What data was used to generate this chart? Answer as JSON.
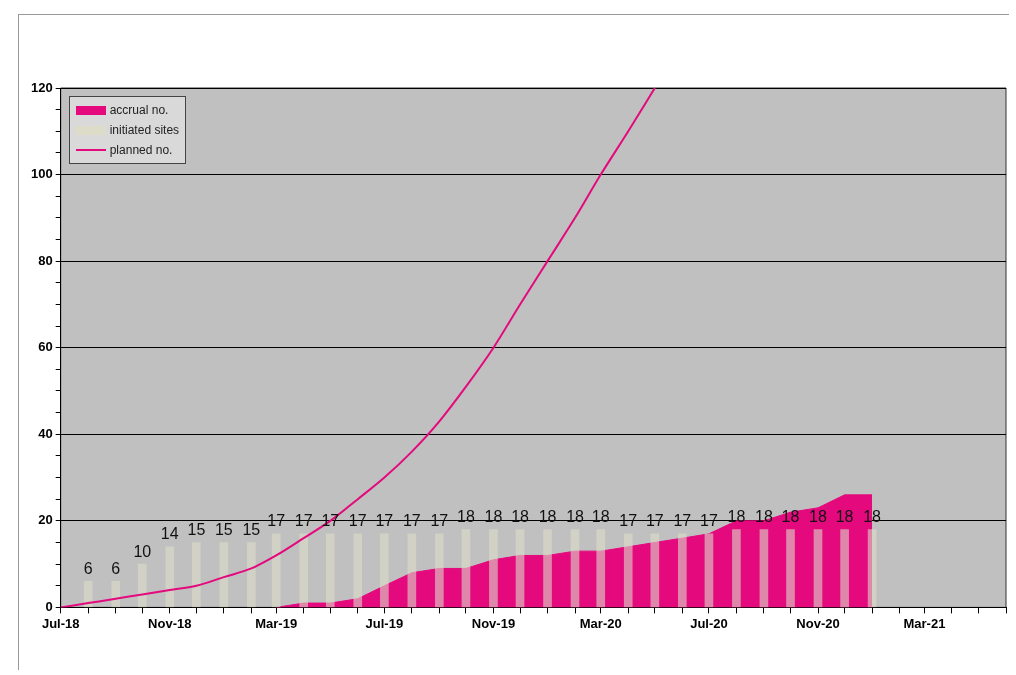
{
  "chart_data": {
    "type": "bar",
    "xlim": [
      "2018-07",
      "2021-06"
    ],
    "xticks": [
      {
        "value": "2018-07",
        "label": "Jul-18"
      },
      {
        "value": "2018-08",
        "label": null
      },
      {
        "value": "2018-09",
        "label": null
      },
      {
        "value": "2018-10",
        "label": null
      },
      {
        "value": "2018-11",
        "label": "Nov-18"
      },
      {
        "value": "2018-12",
        "label": null
      },
      {
        "value": "2019-01",
        "label": null
      },
      {
        "value": "2019-02",
        "label": null
      },
      {
        "value": "2019-03",
        "label": "Mar-19"
      },
      {
        "value": "2019-04",
        "label": null
      },
      {
        "value": "2019-05",
        "label": null
      },
      {
        "value": "2019-06",
        "label": null
      },
      {
        "value": "2019-07",
        "label": "Jul-19"
      },
      {
        "value": "2019-08",
        "label": null
      },
      {
        "value": "2019-09",
        "label": null
      },
      {
        "value": "2019-10",
        "label": null
      },
      {
        "value": "2019-11",
        "label": "Nov-19"
      },
      {
        "value": "2019-12",
        "label": null
      },
      {
        "value": "2020-01",
        "label": null
      },
      {
        "value": "2020-02",
        "label": null
      },
      {
        "value": "2020-03",
        "label": "Mar-20"
      },
      {
        "value": "2020-04",
        "label": null
      },
      {
        "value": "2020-05",
        "label": null
      },
      {
        "value": "2020-06",
        "label": null
      },
      {
        "value": "2020-07",
        "label": "Jul-20"
      },
      {
        "value": "2020-08",
        "label": null
      },
      {
        "value": "2020-09",
        "label": null
      },
      {
        "value": "2020-10",
        "label": null
      },
      {
        "value": "2020-11",
        "label": "Nov-20"
      },
      {
        "value": "2020-12",
        "label": null
      },
      {
        "value": "2021-01",
        "label": null
      },
      {
        "value": "2021-02",
        "label": null
      },
      {
        "value": "2021-03",
        "label": "Mar-21"
      },
      {
        "value": "2021-04",
        "label": null
      },
      {
        "value": "2021-05",
        "label": null
      },
      {
        "value": "2021-06",
        "label": null
      }
    ],
    "ylim": [
      0,
      120
    ],
    "yticks": [
      0,
      {
        "value": 5,
        "label": null
      },
      {
        "value": 10,
        "label": null
      },
      {
        "value": 15,
        "label": null
      },
      20,
      {
        "value": 25,
        "label": null
      },
      {
        "value": 30,
        "label": null
      },
      {
        "value": 35,
        "label": null
      },
      40,
      {
        "value": 45,
        "label": null
      },
      {
        "value": 50,
        "label": null
      },
      {
        "value": 55,
        "label": null
      },
      60,
      {
        "value": 65,
        "label": null
      },
      {
        "value": 70,
        "label": null
      },
      {
        "value": 75,
        "label": null
      },
      80,
      {
        "value": 85,
        "label": null
      },
      {
        "value": 90,
        "label": null
      },
      {
        "value": 95,
        "label": null
      },
      100,
      {
        "value": 105,
        "label": null
      },
      {
        "value": 110,
        "label": null
      },
      {
        "value": 115,
        "label": null
      },
      120
    ],
    "grid": "y",
    "legend": "top left",
    "series": [
      {
        "name": "accrual no.",
        "type": "area",
        "color": "#e4097d",
        "x": [
          "2019-03",
          "2019-04",
          "2019-05",
          "2019-06",
          "2019-07",
          "2019-08",
          "2019-09",
          "2019-10",
          "2019-11",
          "2019-12",
          "2020-01",
          "2020-02",
          "2020-03",
          "2020-04",
          "2020-05",
          "2020-06",
          "2020-07",
          "2020-08",
          "2020-09",
          "2020-10",
          "2020-11",
          "2020-12",
          "2021-01"
        ],
        "values": [
          0,
          1,
          1,
          2,
          5,
          8,
          9,
          9,
          11,
          12,
          12,
          13,
          13,
          14,
          15,
          16,
          17,
          20,
          20,
          22,
          23,
          26,
          26
        ]
      },
      {
        "name": "initiated sites",
        "color": "#dcdcc8",
        "x": [
          "2018-08",
          "2018-09",
          "2018-10",
          "2018-11",
          "2018-12",
          "2019-01",
          "2019-02",
          "2019-03",
          "2019-04",
          "2019-05",
          "2019-06",
          "2019-07",
          "2019-08",
          "2019-09",
          "2019-10",
          "2019-11",
          "2019-12",
          "2020-01",
          "2020-02",
          "2020-03",
          "2020-04",
          "2020-05",
          "2020-06",
          "2020-07",
          "2020-08",
          "2020-09",
          "2020-10",
          "2020-11",
          "2020-12",
          "2021-01"
        ],
        "values": [
          6,
          6,
          10,
          14,
          15,
          15,
          15,
          17,
          17,
          17,
          17,
          17,
          17,
          17,
          18,
          18,
          18,
          18,
          18,
          18,
          17,
          17,
          17,
          17,
          18,
          18,
          18,
          18,
          18,
          18
        ],
        "value_labels": [
          "6",
          "6",
          "10",
          "14",
          "15",
          "15",
          "15",
          "17",
          "17",
          "17",
          "17",
          "17",
          "17",
          "17",
          "18",
          "18",
          "18",
          "18",
          "18",
          "18",
          "17",
          "17",
          "17",
          "17",
          "18",
          "18",
          "18",
          "18",
          "18",
          "18"
        ]
      },
      {
        "name": "planned no.",
        "type": "line",
        "color": "#e4097d",
        "x": [
          "2018-07",
          "2018-08",
          "2018-09",
          "2018-10",
          "2018-11",
          "2018-12",
          "2019-01",
          "2019-02",
          "2019-03",
          "2019-04",
          "2019-05",
          "2019-06",
          "2019-07",
          "2019-08",
          "2019-09",
          "2019-10",
          "2019-11",
          "2019-12",
          "2020-01",
          "2020-02",
          "2020-03",
          "2020-04",
          "2020-05"
        ],
        "values": [
          0,
          1,
          2,
          3,
          4,
          5,
          7,
          9,
          12,
          16,
          20,
          25,
          30,
          36,
          43,
          51,
          60,
          70,
          80,
          90,
          100,
          110,
          120
        ]
      }
    ]
  }
}
